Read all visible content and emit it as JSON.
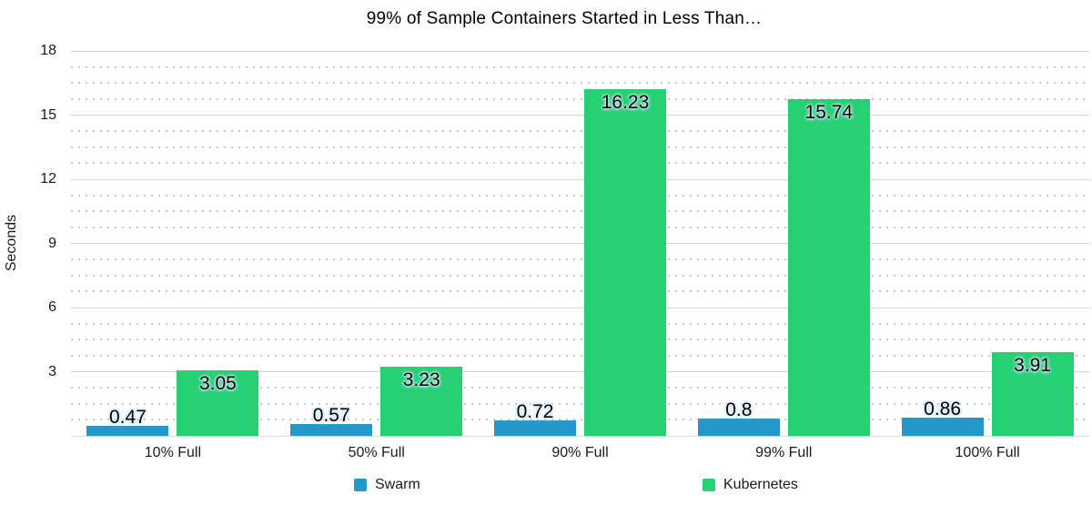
{
  "chart_data": {
    "type": "bar",
    "title": "99% of Sample Containers Started in Less Than…",
    "ylabel": "Seconds",
    "categories": [
      "10% Full",
      "50% Full",
      "90% Full",
      "99% Full",
      "100% Full"
    ],
    "series": [
      {
        "name": "Swarm",
        "color": "#2499c9",
        "values": [
          0.47,
          0.57,
          0.72,
          0.8,
          0.86
        ],
        "value_labels": [
          "0.47",
          "0.57",
          "0.72",
          "0.8",
          "0.86"
        ]
      },
      {
        "name": "Kubernetes",
        "color": "#26d073",
        "values": [
          3.05,
          3.23,
          16.23,
          15.74,
          3.91
        ],
        "value_labels": [
          "3.05",
          "3.23",
          "16.23",
          "15.74",
          "3.91"
        ]
      }
    ],
    "ylim": [
      0,
      18
    ],
    "yticks": [
      3,
      6,
      9,
      12,
      15,
      18
    ],
    "minor_subdivisions_per_major": 4,
    "grid": {
      "major": "solid",
      "minor": "dotted"
    },
    "legend_position": "bottom"
  }
}
